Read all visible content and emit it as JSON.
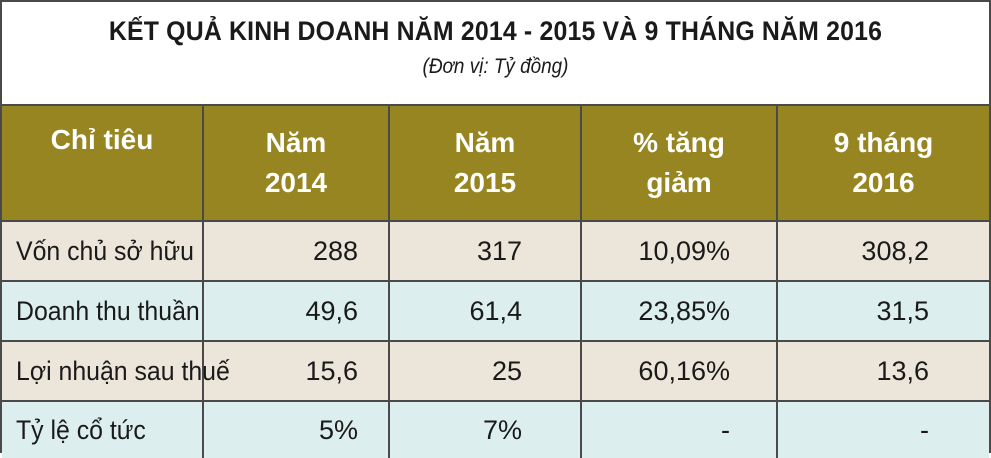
{
  "title": "KẾT QUẢ KINH DOANH NĂM 2014 - 2015 VÀ 9 THÁNG NĂM 2016",
  "unit": "(Đơn vị: Tỷ đồng)",
  "colors": {
    "header_bg": "#968520",
    "header_text": "#ffffff",
    "row_beige": "#ece5d9",
    "row_cyan": "#dcefee",
    "border": "#4a4a4a"
  },
  "table": {
    "headers": [
      {
        "line1": "Chỉ tiêu",
        "line2": ""
      },
      {
        "line1": "Năm",
        "line2": "2014"
      },
      {
        "line1": "Năm",
        "line2": "2015"
      },
      {
        "line1": "% tăng",
        "line2": "giảm"
      },
      {
        "line1": "9 tháng",
        "line2": "2016"
      }
    ],
    "rows": [
      {
        "label": "Vốn chủ sở hữu",
        "y2014": "288",
        "y2015": "317",
        "change": "10,09%",
        "m9_2016": "308,2"
      },
      {
        "label": "Doanh thu thuần",
        "y2014": "49,6",
        "y2015": "61,4",
        "change": "23,85%",
        "m9_2016": "31,5"
      },
      {
        "label": "Lợi nhuận sau thuế",
        "y2014": "15,6",
        "y2015": "25",
        "change": "60,16%",
        "m9_2016": "13,6"
      },
      {
        "label": "Tỷ lệ cổ tức",
        "y2014": "5%",
        "y2015": "7%",
        "change": "-",
        "m9_2016": "-"
      }
    ]
  }
}
